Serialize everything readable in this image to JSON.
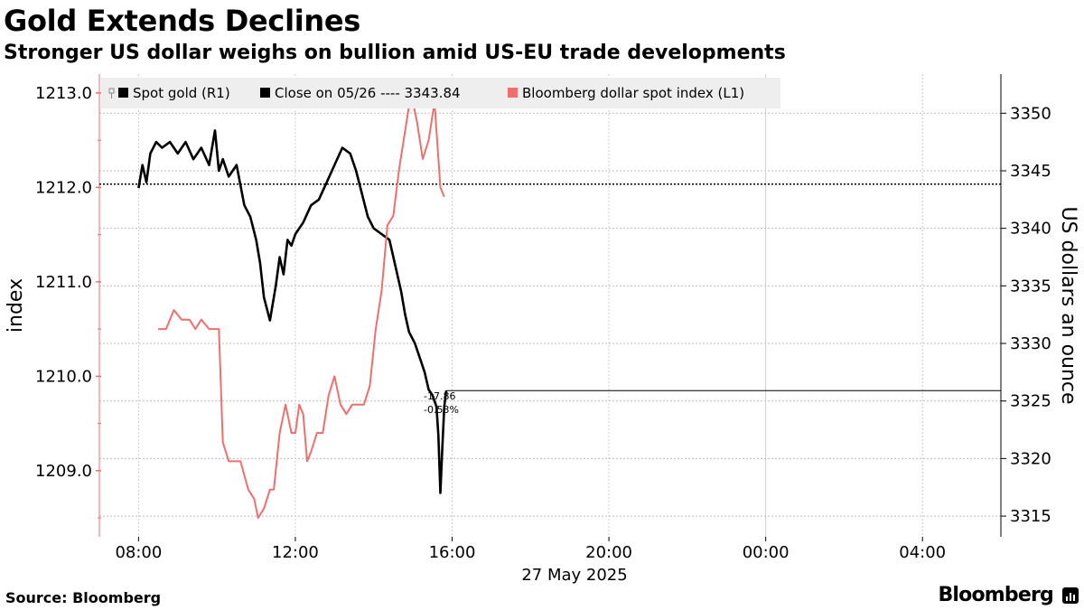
{
  "header": {
    "title": "Gold Extends Declines",
    "subtitle": "Stronger US dollar weighs on bullion amid US-EU trade developments"
  },
  "footer": {
    "source": "Source: Bloomberg",
    "brand": "Bloomberg"
  },
  "chart_data": {
    "type": "line",
    "date_label": "27 May 2025",
    "x_ticks": [
      "08:00",
      "12:00",
      "16:00",
      "20:00",
      "00:00",
      "04:00"
    ],
    "x_range_hours": [
      7.0,
      30.0
    ],
    "y_left": {
      "label": "index",
      "range": [
        1208.3,
        1213.2
      ],
      "ticks": [
        "1209.0",
        "1210.0",
        "1211.0",
        "1212.0",
        "1213.0"
      ]
    },
    "y_right": {
      "label": "US dollars an ounce",
      "range": [
        3313.2,
        3353.4
      ],
      "ticks": [
        "3315",
        "3320",
        "3325",
        "3330",
        "3335",
        "3340",
        "3345",
        "3350"
      ]
    },
    "grid": true,
    "legend": [
      {
        "label": "Spot gold (R1)",
        "color": "#000000"
      },
      {
        "label": "Close on 05/26 ---- 3343.84",
        "color": "#000000"
      },
      {
        "label": "Bloomberg dollar spot index (L1)",
        "color": "#f06e6e"
      }
    ],
    "reference_line": {
      "label": "Close on 05/26",
      "value": 3343.84
    },
    "last_value_line": {
      "value": 3325.9
    },
    "annotations": [
      "-17.86",
      "-0.53%"
    ],
    "series": [
      {
        "name": "Spot gold (R1)",
        "axis": "right",
        "color": "#000000",
        "x": [
          8.0,
          8.1,
          8.2,
          8.3,
          8.45,
          8.6,
          8.8,
          9.0,
          9.2,
          9.4,
          9.6,
          9.8,
          9.95,
          10.05,
          10.15,
          10.3,
          10.5,
          10.7,
          10.85,
          11.0,
          11.1,
          11.2,
          11.35,
          11.5,
          11.6,
          11.7,
          11.8,
          11.9,
          12.0,
          12.2,
          12.4,
          12.6,
          12.8,
          13.0,
          13.2,
          13.4,
          13.55,
          13.7,
          13.85,
          14.0,
          14.2,
          14.4,
          14.6,
          14.7,
          14.8,
          14.9,
          15.05,
          15.2,
          15.3,
          15.4,
          15.5,
          15.6,
          15.65,
          15.7,
          15.75,
          15.8,
          15.85
        ],
        "y": [
          3343.5,
          3345.5,
          3344.0,
          3346.5,
          3347.5,
          3347.0,
          3347.5,
          3346.5,
          3347.5,
          3346.0,
          3347.0,
          3345.5,
          3348.5,
          3345.0,
          3346.0,
          3344.5,
          3345.5,
          3342.0,
          3341.0,
          3339.0,
          3337.0,
          3334.0,
          3332.0,
          3335.0,
          3337.5,
          3336.0,
          3339.0,
          3338.5,
          3339.5,
          3340.5,
          3342.0,
          3342.5,
          3344.0,
          3345.5,
          3347.0,
          3346.5,
          3345.0,
          3343.0,
          3341.0,
          3340.0,
          3339.5,
          3339.0,
          3336.0,
          3334.5,
          3332.5,
          3331.0,
          3330.0,
          3328.5,
          3327.5,
          3326.0,
          3325.5,
          3324.5,
          3322.0,
          3317.0,
          3321.0,
          3324.5,
          3325.9
        ]
      },
      {
        "name": "Bloomberg dollar spot index (L1)",
        "axis": "left",
        "color": "#f06e6e",
        "x": [
          8.5,
          8.7,
          8.9,
          9.1,
          9.3,
          9.45,
          9.6,
          9.8,
          9.95,
          10.05,
          10.15,
          10.3,
          10.45,
          10.6,
          10.8,
          10.95,
          11.05,
          11.2,
          11.35,
          11.45,
          11.6,
          11.75,
          11.9,
          12.0,
          12.1,
          12.2,
          12.3,
          12.4,
          12.55,
          12.7,
          12.85,
          13.0,
          13.15,
          13.3,
          13.45,
          13.6,
          13.75,
          13.9,
          14.05,
          14.2,
          14.35,
          14.5,
          14.65,
          14.8,
          14.95,
          15.1,
          15.25,
          15.4,
          15.55,
          15.7,
          15.8
        ],
        "y": [
          1210.5,
          1210.5,
          1210.7,
          1210.6,
          1210.6,
          1210.5,
          1210.6,
          1210.5,
          1210.5,
          1210.5,
          1209.3,
          1209.1,
          1209.1,
          1209.1,
          1208.8,
          1208.7,
          1208.5,
          1208.6,
          1208.8,
          1208.8,
          1209.4,
          1209.7,
          1209.4,
          1209.4,
          1209.7,
          1209.6,
          1209.1,
          1209.2,
          1209.4,
          1209.4,
          1209.8,
          1210.0,
          1209.7,
          1209.6,
          1209.7,
          1209.7,
          1209.7,
          1209.9,
          1210.5,
          1210.9,
          1211.6,
          1211.7,
          1212.2,
          1212.6,
          1213.0,
          1212.7,
          1212.3,
          1212.5,
          1212.9,
          1212.0,
          1211.9
        ]
      }
    ]
  }
}
